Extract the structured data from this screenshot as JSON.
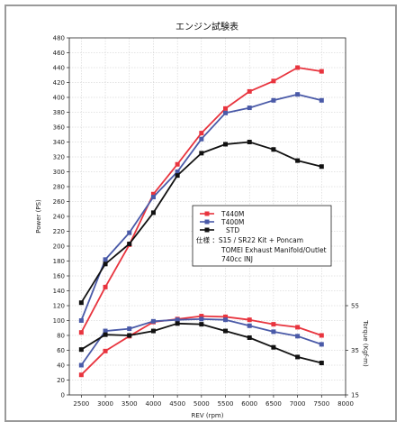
{
  "chart_data": {
    "type": "line",
    "title": "エンジン試験表",
    "xlabel": "REV (rpm)",
    "ylabel": "Power (PS)",
    "y2label": "Torque (Kgf-m)",
    "x": [
      2500,
      3000,
      3500,
      4000,
      4500,
      5000,
      5500,
      6000,
      6500,
      7000,
      7500
    ],
    "xticks": [
      2500,
      3000,
      3500,
      4000,
      4500,
      5000,
      5500,
      6000,
      6500,
      7000,
      7500,
      8000
    ],
    "xlim": [
      2250,
      8000
    ],
    "ylim": [
      0,
      480
    ],
    "yticks": [
      0,
      20,
      40,
      60,
      80,
      100,
      120,
      140,
      160,
      180,
      200,
      220,
      240,
      260,
      280,
      300,
      320,
      340,
      360,
      380,
      400,
      420,
      440,
      460,
      480
    ],
    "y2ticks": [
      15,
      35,
      55
    ],
    "grid": true,
    "series": [
      {
        "name": "T440M",
        "metric": "power",
        "color": "#e8343e",
        "values": [
          84,
          145,
          202,
          270,
          310,
          352,
          385,
          408,
          422,
          440,
          435
        ]
      },
      {
        "name": "T400M",
        "metric": "power",
        "color": "#4a5aa8",
        "values": [
          100,
          182,
          218,
          266,
          300,
          344,
          379,
          386,
          396,
          404,
          396
        ]
      },
      {
        "name": "STD",
        "metric": "power",
        "color": "#111111",
        "values": [
          124,
          176,
          203,
          245,
          295,
          325,
          337,
          340,
          330,
          315,
          307
        ]
      },
      {
        "name": "T440M",
        "metric": "torque",
        "color": "#e8343e",
        "values": [
          27,
          59,
          79,
          98,
          102,
          106,
          105,
          101,
          95,
          91,
          80
        ]
      },
      {
        "name": "T400M",
        "metric": "torque",
        "color": "#4a5aa8",
        "values": [
          40,
          86,
          89,
          99,
          101,
          102,
          101,
          93,
          85,
          79,
          68
        ]
      },
      {
        "name": "STD",
        "metric": "torque",
        "color": "#111111",
        "values": [
          61,
          81,
          80,
          86,
          96,
          95,
          86,
          77,
          64,
          51,
          43
        ]
      }
    ],
    "legend": {
      "placement": "center-right",
      "entries": [
        {
          "label": "T440M",
          "color": "#e8343e"
        },
        {
          "label": "T400M",
          "color": "#4a5aa8"
        },
        {
          "label": "STD",
          "color": "#111111"
        }
      ],
      "notes": [
        "仕様 ：S15 / SR22 Kit + Poncam",
        "TOMEI Exhaust Manifold/Outlet",
        "740cc INJ"
      ]
    }
  }
}
